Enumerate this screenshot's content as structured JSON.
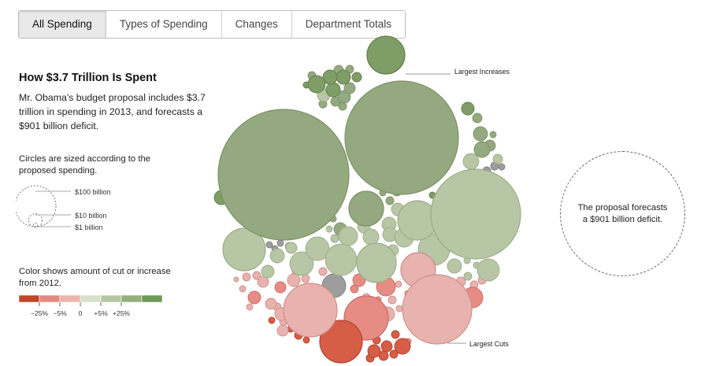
{
  "tabs": [
    {
      "label": "All Spending",
      "active": true
    },
    {
      "label": "Types of Spending",
      "active": false
    },
    {
      "label": "Changes",
      "active": false
    },
    {
      "label": "Department Totals",
      "active": false
    }
  ],
  "headline": "How $3.7 Trillion Is Spent",
  "summary": "Mr. Obama's budget proposal includes $3.7 trillion in spending in 2013, and forecasts a $901 billion deficit.",
  "size_legend": {
    "note": "Circles are sized according to the proposed spending.",
    "labels": [
      "$100 billion",
      "$10 billion",
      "$1 billion"
    ]
  },
  "color_legend": {
    "note": "Color shows amount of cut or increase from 2012.",
    "colors": [
      "#c0452b",
      "#e38a80",
      "#ecb4ae",
      "#d8dfcb",
      "#b5c7a1",
      "#94ae7c",
      "#6e9956"
    ],
    "labels": [
      "−25%",
      "−5%",
      "0",
      "+5%",
      "+25%"
    ]
  },
  "annotations": {
    "largest_increases": "Largest Increases",
    "largest_cuts": "Largest Cuts"
  },
  "deficit": {
    "text": "The proposal forecasts a $901 billion deficit."
  }
}
